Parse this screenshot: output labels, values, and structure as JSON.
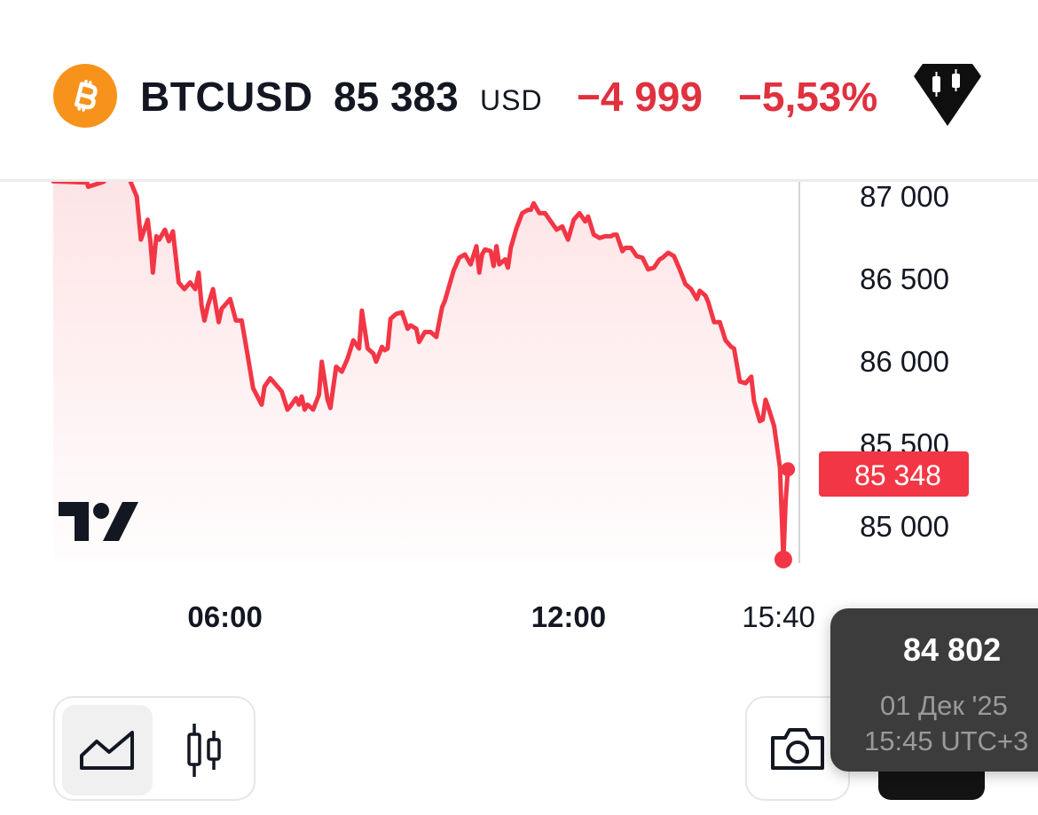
{
  "header": {
    "symbol": "BTCUSD",
    "price": "85 383",
    "currency": "USD",
    "change_abs": "−4 999",
    "change_pct": "−5,53%",
    "coin_icon": "bitcoin-icon",
    "badge_icon": "candlestick-badge-icon",
    "colors": {
      "coin": "#F7931A",
      "negative": "#E0313F"
    }
  },
  "chart_data": {
    "type": "area",
    "y_ticks": [
      "87 000",
      "86 500",
      "86 000",
      "85 500",
      "85 000"
    ],
    "y_tick_values": [
      87000,
      86500,
      86000,
      85500,
      85000
    ],
    "x_ticks": [
      {
        "label": "06:00",
        "hour": 6,
        "bold": true
      },
      {
        "label": "12:00",
        "hour": 12,
        "bold": true
      },
      {
        "label": "15:40",
        "hour": 15.667,
        "bold": false
      }
    ],
    "ylim": [
      84780,
      87090
    ],
    "xlim": [
      3.0,
      16.2
    ],
    "current_price_label": "85 348",
    "current_price": 85348,
    "low_marker": {
      "hour": 15.75,
      "value": 84802
    },
    "last_marker": {
      "hour": 15.83,
      "value": 85348
    },
    "line_color": "#F23645",
    "x": [
      3.0,
      3.59,
      3.61,
      3.88,
      4.08,
      4.23,
      4.46,
      4.53,
      4.65,
      4.7,
      4.74,
      4.8,
      4.85,
      4.95,
      5.02,
      5.09,
      5.19,
      5.29,
      5.39,
      5.48,
      5.54,
      5.59,
      5.64,
      5.7,
      5.79,
      5.89,
      5.94,
      6.09,
      6.19,
      6.29,
      6.39,
      6.49,
      6.64,
      6.69,
      6.79,
      6.89,
      6.99,
      7.09,
      7.14,
      7.24,
      7.29,
      7.34,
      7.39,
      7.44,
      7.54,
      7.64,
      7.69,
      7.74,
      7.79,
      7.84,
      7.94,
      8.04,
      8.14,
      8.24,
      8.34,
      8.39,
      8.49,
      8.59,
      8.64,
      8.74,
      8.79,
      8.84,
      8.89,
      8.99,
      9.09,
      9.19,
      9.24,
      9.34,
      9.39,
      9.49,
      9.59,
      9.69,
      9.79,
      9.84,
      9.89,
      9.99,
      10.09,
      10.19,
      10.29,
      10.39,
      10.44,
      10.49,
      10.54,
      10.64,
      10.69,
      10.74,
      10.79,
      10.89,
      10.94,
      10.99,
      11.09,
      11.19,
      11.29,
      11.34,
      11.39,
      11.49,
      11.59,
      11.69,
      11.79,
      11.89,
      11.94,
      11.99,
      12.09,
      12.19,
      12.29,
      12.34,
      12.44,
      12.54,
      12.64,
      12.74,
      12.79,
      12.84,
      12.94,
      12.99,
      13.09,
      13.19,
      13.29,
      13.39,
      13.49,
      13.59,
      13.64,
      13.74,
      13.84,
      13.94,
      14.04,
      14.14,
      14.24,
      14.29,
      14.39,
      14.44,
      14.54,
      14.64,
      14.74,
      14.84,
      14.89,
      14.99,
      15.09,
      15.19,
      15.24,
      15.34,
      15.39,
      15.44,
      15.49,
      15.59,
      15.69,
      15.75,
      15.79,
      15.83
    ],
    "values": [
      87093,
      87085,
      87060,
      87090,
      87180,
      87191,
      87000,
      86740,
      86860,
      86720,
      86540,
      86760,
      86740,
      86800,
      86730,
      86790,
      86480,
      86440,
      86480,
      86440,
      86540,
      86340,
      86250,
      86340,
      86440,
      86240,
      86320,
      86380,
      86250,
      86250,
      86050,
      85840,
      85740,
      85850,
      85900,
      85860,
      85820,
      85710,
      85730,
      85780,
      85740,
      85790,
      85710,
      85740,
      85710,
      85800,
      86000,
      85890,
      85770,
      85720,
      85970,
      85940,
      86020,
      86130,
      86080,
      86310,
      86080,
      86050,
      86000,
      86090,
      86070,
      86080,
      86260,
      86290,
      86300,
      86200,
      86220,
      86200,
      86120,
      86180,
      86180,
      86150,
      86330,
      86370,
      86430,
      86550,
      86630,
      86650,
      86590,
      86700,
      86540,
      86650,
      86680,
      86670,
      86580,
      86700,
      86590,
      86620,
      86570,
      86690,
      86810,
      86900,
      86920,
      86920,
      86960,
      86900,
      86900,
      86850,
      86800,
      86820,
      86780,
      86740,
      86860,
      86900,
      86850,
      86880,
      86770,
      86750,
      86760,
      86760,
      86770,
      86770,
      86670,
      86690,
      86690,
      86640,
      86630,
      86560,
      86570,
      86620,
      86630,
      86660,
      86640,
      86560,
      86470,
      86440,
      86380,
      86430,
      86400,
      86360,
      86240,
      86240,
      86130,
      86090,
      86080,
      85880,
      85870,
      85910,
      85760,
      85640,
      85650,
      85770,
      85720,
      85610,
      85360,
      84802,
      85150,
      85348
    ]
  },
  "toolbar": {
    "area_icon": "area-chart-icon",
    "candle_icon": "candlestick-icon",
    "camera_icon": "camera-icon"
  },
  "tooltip": {
    "value": "84 802",
    "date": "01 Дек '25",
    "time": "15:45 UTC+3"
  }
}
